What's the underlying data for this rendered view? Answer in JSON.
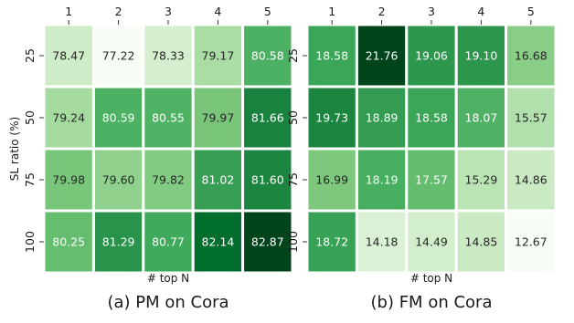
{
  "chart_data": [
    {
      "type": "heatmap",
      "title": "(a) PM on Cora",
      "xlabel": "# top N",
      "ylabel": "SL ratio (%)",
      "x_categories": [
        "1",
        "2",
        "3",
        "4",
        "5"
      ],
      "y_categories": [
        "25",
        "50",
        "75",
        "100"
      ],
      "values": [
        [
          78.47,
          77.22,
          78.33,
          79.17,
          80.58
        ],
        [
          79.24,
          80.59,
          80.55,
          79.97,
          81.66
        ],
        [
          79.98,
          79.6,
          79.82,
          81.02,
          81.6
        ],
        [
          80.25,
          81.29,
          80.77,
          82.14,
          82.87
        ]
      ],
      "colormap": "Greens",
      "value_range": [
        77.22,
        82.87
      ]
    },
    {
      "type": "heatmap",
      "title": "(b) FM on Cora",
      "xlabel": "# top N",
      "ylabel": "",
      "x_categories": [
        "1",
        "2",
        "3",
        "4",
        "5"
      ],
      "y_categories": [
        "25",
        "50",
        "75",
        "100"
      ],
      "values": [
        [
          18.58,
          21.76,
          19.06,
          19.1,
          16.68
        ],
        [
          19.73,
          18.89,
          18.58,
          18.07,
          15.57
        ],
        [
          16.99,
          18.19,
          17.57,
          15.29,
          14.86
        ],
        [
          18.72,
          14.18,
          14.49,
          14.85,
          12.67
        ]
      ],
      "colormap": "Greens",
      "value_range": [
        12.67,
        21.76
      ]
    }
  ]
}
